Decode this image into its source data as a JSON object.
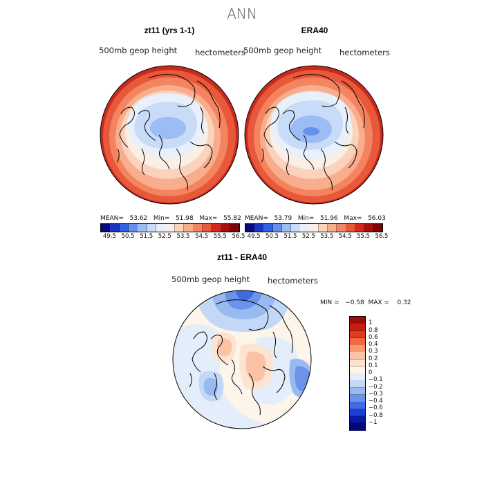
{
  "figure": {
    "title": "ANN",
    "units_label": "hectometers",
    "field_label": "500mb  geop  height"
  },
  "panels": [
    {
      "title": "zt11 (yrs 1-1)",
      "stats": {
        "mean_label": "MEAN=",
        "mean": "53.62",
        "min_label": "Min=",
        "min": "51.98",
        "max_label": "Max=",
        "max": "55.82"
      }
    },
    {
      "title": "ERA40",
      "stats": {
        "mean_label": "MEAN=",
        "mean": "53.79",
        "min_label": "Min=",
        "min": "51.96",
        "max_label": "Max=",
        "max": "56.03"
      }
    },
    {
      "title": "zt11 - ERA40",
      "stats": {
        "min_label": "MIN =",
        "min": "−0.58",
        "max_label": "MAX =",
        "max": "0.32"
      }
    }
  ],
  "colorbar_abs": {
    "labels": [
      "49.5",
      "50.5",
      "51.5",
      "52.5",
      "53.5",
      "54.5",
      "55.5",
      "56.5"
    ],
    "colors": [
      "#0a0a7a",
      "#1a35c0",
      "#3560df",
      "#6690ee",
      "#9cbcf4",
      "#c8dbf7",
      "#e7f0fb",
      "#fbefe4",
      "#fbd3bd",
      "#f8ad8d",
      "#f3845f",
      "#e8583a",
      "#d22b1c",
      "#a80f0f",
      "#7a0505"
    ]
  },
  "colorbar_diff": {
    "labels": [
      "1",
      "0.8",
      "0.6",
      "0.4",
      "0.3",
      "0.2",
      "0.1",
      "0",
      "−0.1",
      "−0.2",
      "−0.3",
      "−0.4",
      "−0.6",
      "−0.8",
      "−1"
    ],
    "colors": [
      "#9a0d0d",
      "#c8200f",
      "#e03c1c",
      "#f06a40",
      "#f79a72",
      "#fbc3a4",
      "#fde3d2",
      "#fdf4ea",
      "#e4eefb",
      "#c3d8f6",
      "#99baf1",
      "#6b93ea",
      "#3f6ae2",
      "#1e3fd2",
      "#0a18a6",
      "#05067a"
    ]
  },
  "chart_data": {
    "type": "heatmap",
    "title": "ANN",
    "maps": [
      {
        "name": "zt11 (yrs 1-1)",
        "variable": "500mb geop height",
        "units": "hectometers",
        "mean": 53.62,
        "min": 51.98,
        "max": 55.82
      },
      {
        "name": "ERA40",
        "variable": "500mb geop height",
        "units": "hectometers",
        "mean": 53.79,
        "min": 51.96,
        "max": 56.03
      },
      {
        "name": "zt11 - ERA40",
        "variable": "500mb geop height",
        "units": "hectometers",
        "min": -0.58,
        "max": 0.32
      }
    ],
    "abs_levels": [
      49.5,
      50.5,
      51.5,
      52.5,
      53.5,
      54.5,
      55.5,
      56.5
    ],
    "diff_levels": [
      -1,
      -0.8,
      -0.6,
      -0.4,
      -0.3,
      -0.2,
      -0.1,
      0,
      0.1,
      0.2,
      0.3,
      0.4,
      0.6,
      0.8,
      1
    ]
  }
}
